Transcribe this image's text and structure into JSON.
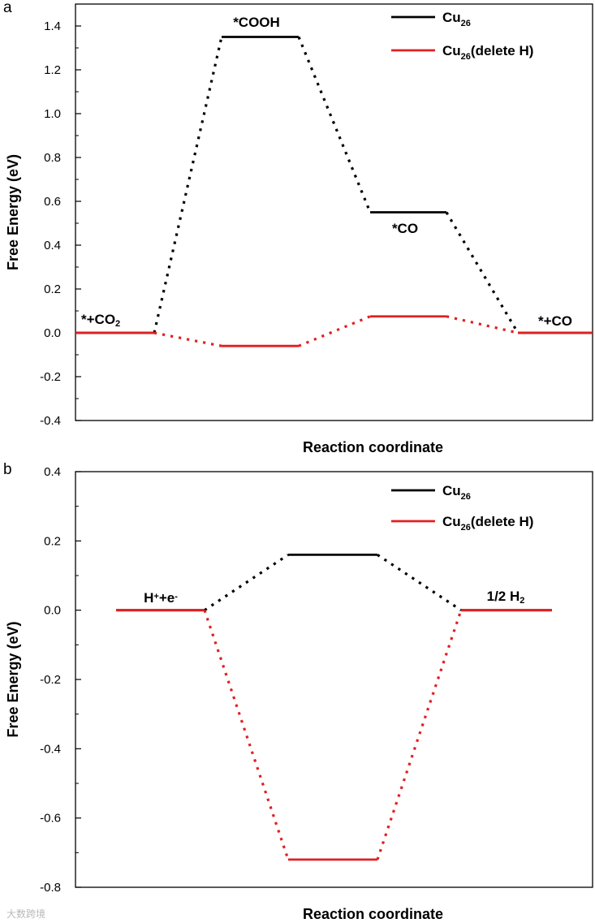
{
  "chart_data": [
    {
      "panel": "a",
      "type": "line",
      "xlabel": "Reaction coordinate",
      "ylabel": "Free Energy (eV)",
      "ylim": [
        -0.4,
        1.5
      ],
      "yticks": [
        "-0.4",
        "-0.2",
        "0.0",
        "0.2",
        "0.4",
        "0.6",
        "0.8",
        "1.0",
        "1.2",
        "1.4"
      ],
      "grid": false,
      "legend_position": "top-right",
      "states": [
        {
          "label": "*+CO",
          "sub": "2",
          "sup": ""
        },
        {
          "label": "*COOH",
          "sub": "",
          "sup": ""
        },
        {
          "label": "*CO",
          "sub": "",
          "sup": ""
        },
        {
          "label": "*+CO",
          "sub": "",
          "sup": ""
        }
      ],
      "series": [
        {
          "name": "Cu",
          "name_sub": "26",
          "name_suffix": "",
          "color": "#000000",
          "values": [
            0.0,
            1.35,
            0.55,
            0.0
          ]
        },
        {
          "name": "Cu",
          "name_sub": "26",
          "name_suffix": "(delete H)",
          "color": "#e02020",
          "values": [
            0.0,
            -0.06,
            0.075,
            0.0
          ]
        }
      ]
    },
    {
      "panel": "b",
      "type": "line",
      "xlabel": "Reaction coordinate",
      "ylabel": "Free Energy (eV)",
      "ylim": [
        -0.8,
        0.4
      ],
      "yticks": [
        "-0.8",
        "-0.6",
        "-0.4",
        "-0.2",
        "0.0",
        "0.2",
        "0.4"
      ],
      "grid": false,
      "legend_position": "top-right",
      "states": [
        {
          "label": "H",
          "sup": "+",
          "label2": "+e",
          "sup2": "-"
        },
        {
          "label": "",
          "sup": "",
          "label2": "",
          "sup2": ""
        },
        {
          "label": "1/2 H",
          "sub": "2",
          "sup": "",
          "label2": "",
          "sup2": ""
        }
      ],
      "series": [
        {
          "name": "Cu",
          "name_sub": "26",
          "name_suffix": "",
          "color": "#000000",
          "values": [
            0.0,
            0.16,
            0.0
          ]
        },
        {
          "name": "Cu",
          "name_sub": "26",
          "name_suffix": "(delete H)",
          "color": "#e02020",
          "values": [
            0.0,
            -0.72,
            0.0
          ]
        }
      ]
    }
  ],
  "watermark": "大数跨境"
}
